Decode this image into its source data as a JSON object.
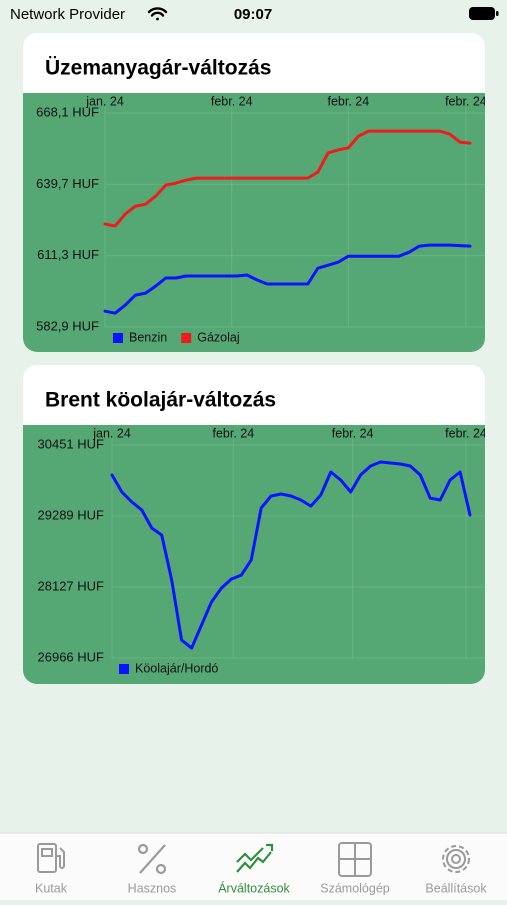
{
  "status_bar": {
    "carrier": "Network Provider",
    "time": "09:07"
  },
  "chart_data": [
    {
      "type": "line",
      "title": "Üzemanyagár-változás",
      "x": [
        0,
        1,
        2,
        3,
        4,
        5,
        6,
        7,
        8,
        9,
        10,
        11,
        12,
        13,
        14,
        15,
        16,
        17,
        18,
        19,
        20,
        21,
        22,
        23,
        24,
        25,
        26,
        27,
        28,
        29,
        30,
        31,
        32,
        33,
        34,
        35,
        36
      ],
      "xlim": [
        0,
        36
      ],
      "xticks": [
        {
          "value": 0,
          "label": "jan. 24"
        },
        {
          "value": 12.5,
          "label": "febr. 24"
        },
        {
          "value": 24,
          "label": "febr. 24"
        },
        {
          "value": 35.6,
          "label": "febr. 24"
        }
      ],
      "ylim": [
        582.9,
        668.1
      ],
      "yticks": [
        {
          "value": 668.1,
          "label": "668,1 HUF"
        },
        {
          "value": 639.7,
          "label": "639,7 HUF"
        },
        {
          "value": 611.3,
          "label": "611,3 HUF"
        },
        {
          "value": 582.9,
          "label": "582,9 HUF"
        }
      ],
      "grid": true,
      "legend": "bottom-left",
      "background": "#55a874",
      "series": [
        {
          "name": "Benzin",
          "color": "#0a14ff",
          "values": [
            589.2,
            588.4,
            591.6,
            595.6,
            596.4,
            599.2,
            602.4,
            602.4,
            603.2,
            603.2,
            603.2,
            603.2,
            603.2,
            603.2,
            603.6,
            601.6,
            600.0,
            600.0,
            600.0,
            600.0,
            600.0,
            606.3,
            607.5,
            608.7,
            611.1,
            611.1,
            611.1,
            611.1,
            611.1,
            611.1,
            612.7,
            615.1,
            615.5,
            615.5,
            615.5,
            615.3,
            615.1
          ]
        },
        {
          "name": "Gázolaj",
          "color": "#ee1c1c",
          "values": [
            623.9,
            623.1,
            627.9,
            631.0,
            631.8,
            635.0,
            639.4,
            640.2,
            641.4,
            642.2,
            642.2,
            642.2,
            642.2,
            642.2,
            642.2,
            642.2,
            642.2,
            642.2,
            642.2,
            642.2,
            642.2,
            644.6,
            652.2,
            653.4,
            654.2,
            658.9,
            660.9,
            660.9,
            660.9,
            660.9,
            660.9,
            660.9,
            660.9,
            660.9,
            659.7,
            656.5,
            656.1
          ]
        }
      ]
    },
    {
      "type": "line",
      "title": "Brent köolajár-változás",
      "x": [
        0,
        1,
        2,
        3,
        4,
        5,
        6,
        7,
        8,
        9,
        10,
        11,
        12,
        13,
        14,
        15,
        16,
        17,
        18,
        19,
        20,
        21,
        22,
        23,
        24,
        25,
        26,
        27,
        28,
        29,
        30,
        31,
        32,
        33,
        34,
        35,
        36
      ],
      "xlim": [
        0,
        36
      ],
      "xticks": [
        {
          "value": 0,
          "label": "jan. 24"
        },
        {
          "value": 12.2,
          "label": "febr. 24"
        },
        {
          "value": 24.2,
          "label": "febr. 24"
        },
        {
          "value": 35.6,
          "label": "febr. 24"
        }
      ],
      "ylim": [
        26966,
        30451
      ],
      "yticks": [
        {
          "value": 30451,
          "label": "30451 HUF"
        },
        {
          "value": 29289,
          "label": "29289 HUF"
        },
        {
          "value": 28127,
          "label": "28127 HUF"
        },
        {
          "value": 26966,
          "label": "26966 HUF"
        }
      ],
      "grid": true,
      "legend": "bottom-left",
      "background": "#55a874",
      "series": [
        {
          "name": "Köolajár/Hordó",
          "color": "#0a14ff",
          "values": [
            29960,
            29682,
            29518,
            29387,
            29092,
            28978,
            28241,
            27259,
            27128,
            27504,
            27881,
            28110,
            28257,
            28323,
            28568,
            29420,
            29616,
            29649,
            29616,
            29551,
            29452,
            29633,
            30009,
            29878,
            29682,
            29960,
            30107,
            30173,
            30156,
            30140,
            30107,
            29960,
            29583,
            29551,
            29878,
            30009,
            29305
          ]
        }
      ]
    }
  ],
  "tab_bar": {
    "active": 2,
    "active_color": "#2f8f3f",
    "items": [
      {
        "label": "Kutak"
      },
      {
        "label": "Hasznos"
      },
      {
        "label": "Árváltozások"
      },
      {
        "label": "Számológép"
      },
      {
        "label": "Beállítások"
      }
    ]
  }
}
